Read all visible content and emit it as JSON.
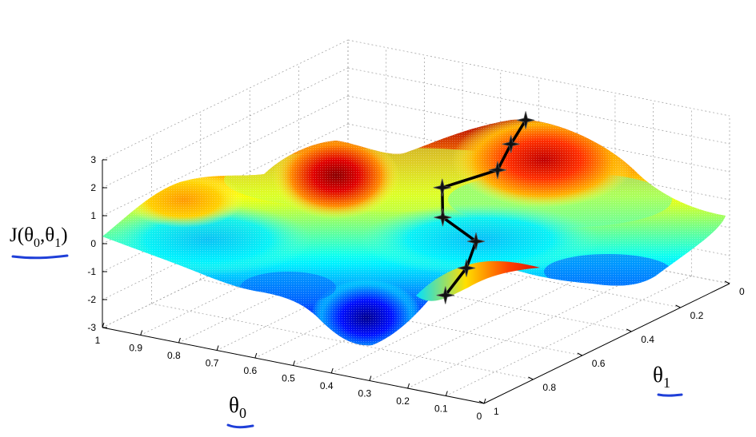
{
  "chart_data": {
    "type": "surface",
    "title": "",
    "zlabel": {
      "prefix": "J(",
      "t0": "θ",
      "s0": "0",
      "comma": ",",
      "t1": "θ",
      "s1": "1",
      "suffix": ")"
    },
    "xlabel": {
      "t": "θ",
      "s": "0"
    },
    "ylabel": {
      "t": "θ",
      "s": "1"
    },
    "zlim": [
      -3,
      3
    ],
    "z_ticks": [
      "3",
      "2",
      "1",
      "0",
      "-1",
      "-2",
      "-3"
    ],
    "theta0_ticks": [
      "1",
      "0.9",
      "0.8",
      "0.7",
      "0.6",
      "0.5",
      "0.4",
      "0.3",
      "0.2",
      "0.1",
      "0"
    ],
    "theta1_ticks": [
      "0",
      "0.2",
      "0.4",
      "0.6",
      "0.8",
      "1"
    ],
    "grid": true,
    "colormap": "jet",
    "path": [
      {
        "theta0": 0.47,
        "theta1": 0.1,
        "z": 2.0
      },
      {
        "theta0": 0.47,
        "theta1": 0.16,
        "z": 1.4
      },
      {
        "theta0": 0.46,
        "theta1": 0.23,
        "z": 0.8
      },
      {
        "theta0": 0.56,
        "theta1": 0.3,
        "z": 0.2
      },
      {
        "theta0": 0.52,
        "theta1": 0.36,
        "z": -0.5
      },
      {
        "theta0": 0.42,
        "theta1": 0.38,
        "z": -1.0
      },
      {
        "theta0": 0.4,
        "theta1": 0.45,
        "z": -1.6
      },
      {
        "theta0": 0.41,
        "theta1": 0.52,
        "z": -2.3
      }
    ],
    "annotation_color": "#1f3fd8"
  }
}
